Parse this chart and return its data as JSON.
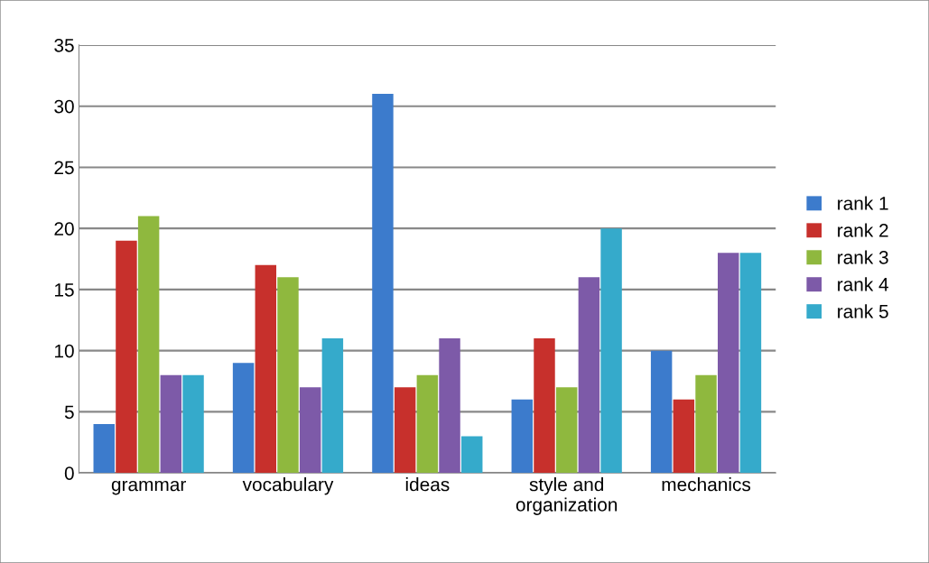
{
  "chart_data": {
    "type": "bar",
    "categories": [
      "grammar",
      "vocabulary",
      "ideas",
      "style and\norganization",
      "mechanics"
    ],
    "series": [
      {
        "name": "rank 1",
        "color": "#3c7bcc",
        "values": [
          4,
          9,
          31,
          6,
          10
        ]
      },
      {
        "name": "rank 2",
        "color": "#c7302c",
        "values": [
          19,
          17,
          7,
          11,
          6
        ]
      },
      {
        "name": "rank 3",
        "color": "#8fb83e",
        "values": [
          21,
          16,
          8,
          7,
          8
        ]
      },
      {
        "name": "rank 4",
        "color": "#7d5aa8",
        "values": [
          8,
          7,
          11,
          16,
          18
        ]
      },
      {
        "name": "rank 5",
        "color": "#35aacb",
        "values": [
          8,
          11,
          3,
          20,
          18
        ]
      }
    ],
    "ylim": [
      0,
      35
    ],
    "yticks": [
      0,
      5,
      10,
      15,
      20,
      25,
      30,
      35
    ],
    "grid": "y",
    "legend": "right"
  }
}
